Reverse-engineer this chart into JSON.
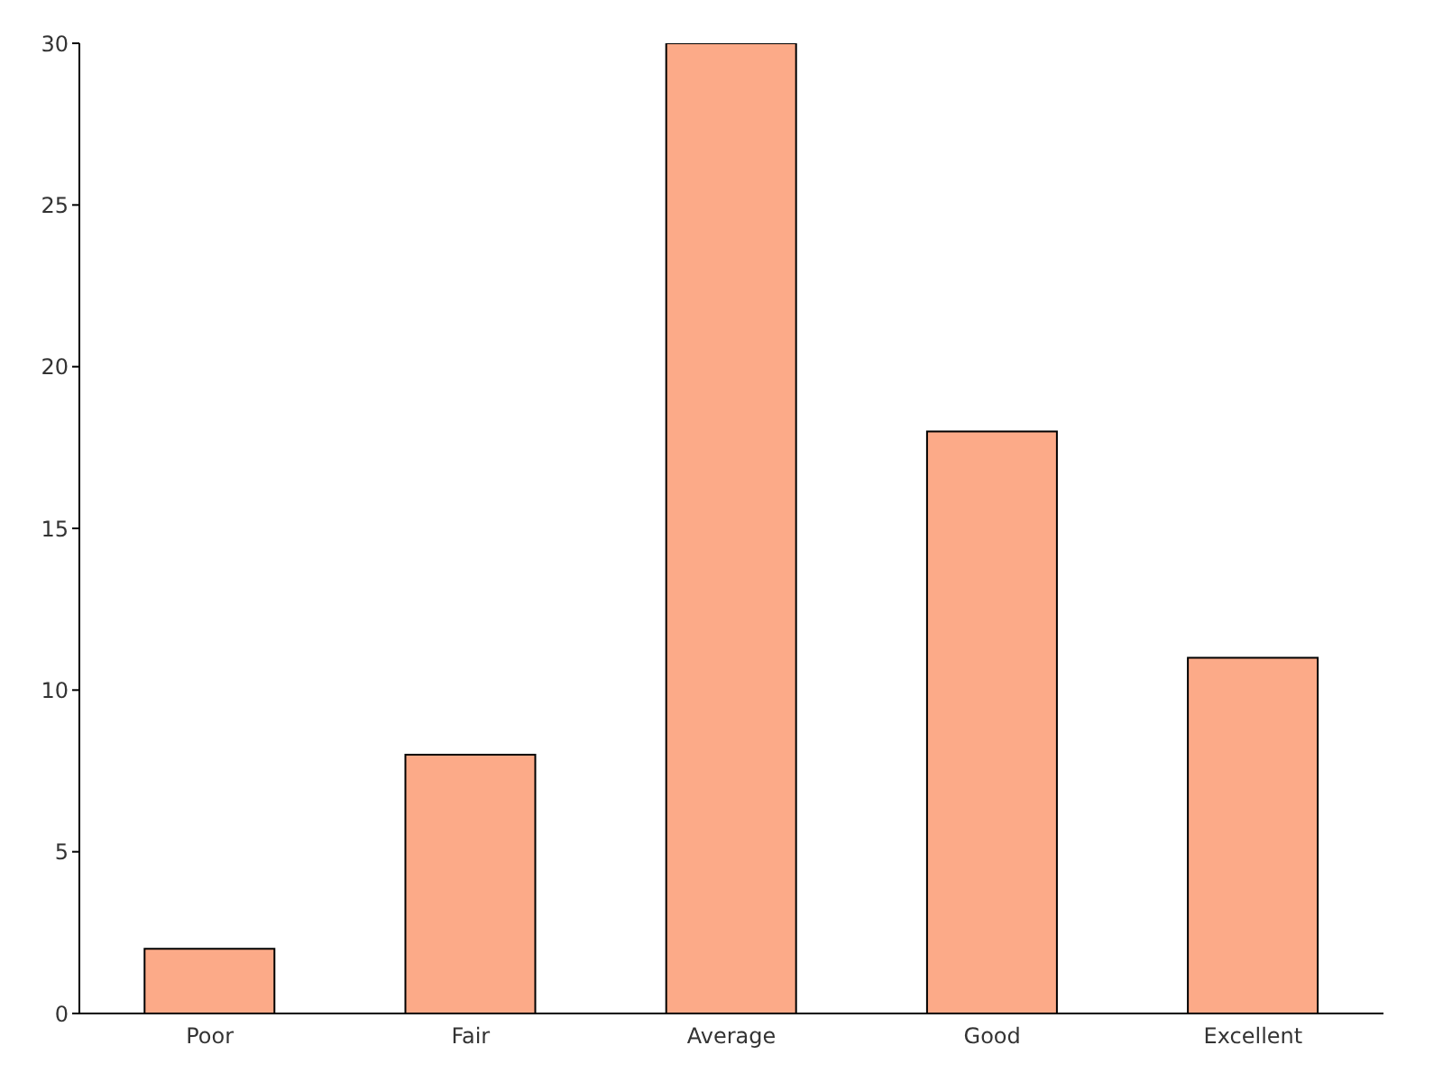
{
  "chart_data": {
    "type": "bar",
    "categories": [
      "Poor",
      "Fair",
      "Average",
      "Good",
      "Excellent"
    ],
    "values": [
      2,
      8,
      30,
      18,
      11
    ],
    "color": "#fcaa88",
    "ylim": [
      0,
      30
    ],
    "yticks": [
      0,
      5,
      10,
      15,
      20,
      25,
      30
    ],
    "grid": false
  }
}
